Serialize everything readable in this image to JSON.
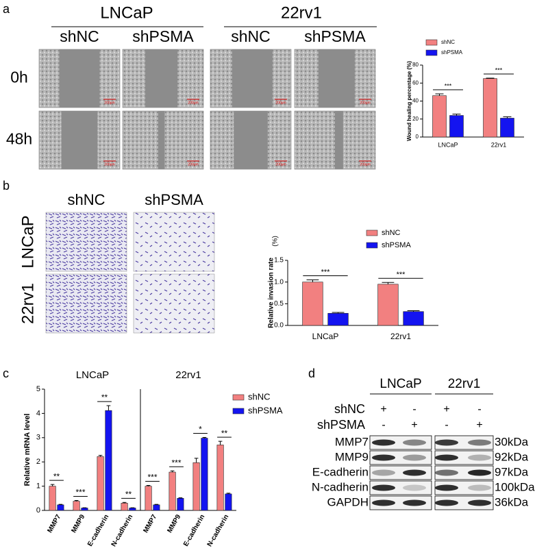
{
  "panel_labels": [
    "a",
    "b",
    "c",
    "d"
  ],
  "migration": {
    "cell_lines": [
      "LNCaP",
      "22rv1"
    ],
    "groups": [
      "shNC",
      "shPSMA",
      "shNC",
      "shPSMA"
    ],
    "times": [
      "0h",
      "48h"
    ],
    "scale_bar": "200μm"
  },
  "invasion": {
    "groups": [
      "shNC",
      "shPSMA"
    ],
    "cell_lines": [
      "LNCaP",
      "22rv1"
    ]
  },
  "chart_data": [
    {
      "type": "bar",
      "categories": [
        "LNCaP",
        "22rv1"
      ],
      "ylabel": "Wound healing percentage (%)",
      "ylim": [
        0,
        80
      ],
      "yticks": [
        0,
        20,
        40,
        60,
        80
      ],
      "legend": "top",
      "series": [
        {
          "name": "shNC",
          "color": "#f28080",
          "values": [
            46,
            65
          ],
          "errors": [
            2,
            0.5
          ]
        },
        {
          "name": "shPSMA",
          "color": "#1414f0",
          "values": [
            24,
            21
          ],
          "errors": [
            1.5,
            1.5
          ]
        }
      ],
      "significance": [
        "***",
        "***"
      ]
    },
    {
      "type": "bar",
      "categories": [
        "LNCaP",
        "22rv1"
      ],
      "ylabel": "Relative invasion rate",
      "yunit": "(%)",
      "ylim": [
        0,
        1.5
      ],
      "yticks": [
        {
          "value": 0,
          "label": "0.0"
        },
        {
          "value": 0.5,
          "label": "0.5"
        },
        {
          "value": 1,
          "label": "1.0"
        },
        {
          "value": 1.5,
          "label": "1.5"
        }
      ],
      "legend": "top",
      "series": [
        {
          "name": "shNC",
          "color": "#f28080",
          "values": [
            1.0,
            0.95
          ],
          "errors": [
            0.05,
            0.04
          ]
        },
        {
          "name": "shPSMA",
          "color": "#1414f0",
          "values": [
            0.28,
            0.32
          ],
          "errors": [
            0.02,
            0.02
          ]
        }
      ],
      "significance": [
        "***",
        "***"
      ]
    },
    {
      "type": "bar",
      "categories": [
        "MMP7",
        "MMP9",
        "E-cadherin",
        "N-cadherin",
        "MMP7",
        "MMP9",
        "E-cadherin",
        "N-cadherin"
      ],
      "group_labels": [
        "LNCaP",
        "22rv1"
      ],
      "ylabel": "Relative mRNA level",
      "ylim": [
        0,
        5
      ],
      "yticks": [
        0,
        1,
        2,
        3,
        4,
        5
      ],
      "legend": "right",
      "series": [
        {
          "name": "shNC",
          "color": "#f28080",
          "values": [
            1.0,
            0.38,
            2.22,
            0.3,
            1.0,
            1.58,
            1.97,
            2.7
          ],
          "errors": [
            0.07,
            0.03,
            0.05,
            0.03,
            0.03,
            0.05,
            0.18,
            0.15
          ]
        },
        {
          "name": "shPSMA",
          "color": "#1414f0",
          "values": [
            0.23,
            0.1,
            4.12,
            0.1,
            0.23,
            0.5,
            2.98,
            0.68
          ],
          "errors": [
            0.02,
            0.01,
            0.2,
            0.01,
            0.02,
            0.02,
            0.03,
            0.03
          ]
        }
      ],
      "significance": [
        "**",
        "***",
        "**",
        "**",
        "***",
        "***",
        "*",
        "**"
      ]
    }
  ],
  "western": {
    "cell_lines": [
      "LNCaP",
      "22rv1"
    ],
    "conditions": [
      {
        "label": "shNC",
        "lanes": [
          "+",
          "-",
          "+",
          "-"
        ]
      },
      {
        "label": "shPSMA",
        "lanes": [
          "-",
          "+",
          "-",
          "+"
        ]
      }
    ],
    "proteins": [
      {
        "name": "MMP7",
        "size": "30kDa"
      },
      {
        "name": "MMP9",
        "size": "92kDa"
      },
      {
        "name": "E-cadherin",
        "size": "97kDa"
      },
      {
        "name": "N-cadherin",
        "size": "100kDa"
      },
      {
        "name": "GAPDH",
        "size": "36kDa"
      }
    ]
  }
}
